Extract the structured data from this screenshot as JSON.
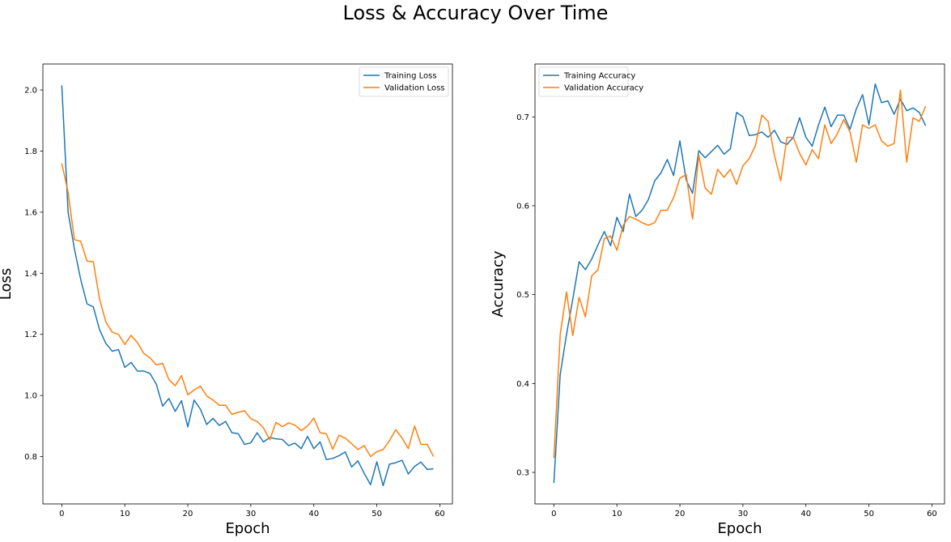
{
  "figure": {
    "title": "Loss & Accuracy Over Time"
  },
  "colors": {
    "series1": "#1f77b4",
    "series2": "#ff7f0e"
  },
  "chart_data": [
    {
      "type": "line",
      "xlabel": "Epoch",
      "ylabel": "Loss",
      "xlim": [
        -3,
        62
      ],
      "ylim": [
        0.645,
        2.085
      ],
      "xticks": [
        0,
        10,
        20,
        30,
        40,
        50,
        60
      ],
      "yticks": [
        0.8,
        1.0,
        1.2,
        1.4,
        1.6,
        1.8,
        2.0
      ],
      "legend_position": "top-right",
      "x": [
        0,
        1,
        2,
        3,
        4,
        5,
        6,
        7,
        8,
        9,
        10,
        11,
        12,
        13,
        14,
        15,
        16,
        17,
        18,
        19,
        20,
        21,
        22,
        23,
        24,
        25,
        26,
        27,
        28,
        29,
        30,
        31,
        32,
        33,
        34,
        35,
        36,
        37,
        38,
        39,
        40,
        41,
        42,
        43,
        44,
        45,
        46,
        47,
        48,
        49,
        50,
        51,
        52,
        53,
        54,
        55,
        56,
        57,
        58,
        59
      ],
      "series": [
        {
          "name": "Training Loss",
          "color": "#1f77b4",
          "values": [
            2.015,
            1.6,
            1.48,
            1.38,
            1.3,
            1.29,
            1.215,
            1.17,
            1.145,
            1.15,
            1.092,
            1.108,
            1.08,
            1.08,
            1.072,
            1.037,
            0.965,
            0.99,
            0.948,
            0.983,
            0.897,
            0.985,
            0.955,
            0.905,
            0.925,
            0.902,
            0.915,
            0.878,
            0.875,
            0.84,
            0.845,
            0.878,
            0.848,
            0.862,
            0.858,
            0.856,
            0.836,
            0.844,
            0.826,
            0.866,
            0.826,
            0.848,
            0.79,
            0.794,
            0.803,
            0.815,
            0.766,
            0.786,
            0.745,
            0.708,
            0.783,
            0.705,
            0.775,
            0.78,
            0.788,
            0.743,
            0.768,
            0.782,
            0.758,
            0.76
          ]
        },
        {
          "name": "Validation Loss",
          "color": "#ff7f0e",
          "values": [
            1.76,
            1.665,
            1.51,
            1.505,
            1.44,
            1.438,
            1.315,
            1.24,
            1.207,
            1.2,
            1.167,
            1.197,
            1.173,
            1.138,
            1.123,
            1.1,
            1.105,
            1.052,
            1.032,
            1.065,
            1.002,
            1.018,
            1.03,
            0.998,
            0.985,
            0.968,
            0.968,
            0.938,
            0.945,
            0.95,
            0.924,
            0.915,
            0.894,
            0.855,
            0.912,
            0.898,
            0.91,
            0.903,
            0.885,
            0.9,
            0.926,
            0.878,
            0.874,
            0.824,
            0.87,
            0.86,
            0.842,
            0.823,
            0.836,
            0.8,
            0.816,
            0.823,
            0.852,
            0.888,
            0.861,
            0.826,
            0.9,
            0.84,
            0.84,
            0.8
          ]
        }
      ]
    },
    {
      "type": "line",
      "xlabel": "Epoch",
      "ylabel": "Accuracy",
      "xlim": [
        -3,
        62
      ],
      "ylim": [
        0.2645,
        0.7595
      ],
      "xticks": [
        0,
        10,
        20,
        30,
        40,
        50,
        60
      ],
      "yticks": [
        0.3,
        0.4,
        0.5,
        0.6,
        0.7
      ],
      "legend_position": "top-left",
      "x": [
        0,
        1,
        2,
        3,
        4,
        5,
        6,
        7,
        8,
        9,
        10,
        11,
        12,
        13,
        14,
        15,
        16,
        17,
        18,
        19,
        20,
        21,
        22,
        23,
        24,
        25,
        26,
        27,
        28,
        29,
        30,
        31,
        32,
        33,
        34,
        35,
        36,
        37,
        38,
        39,
        40,
        41,
        42,
        43,
        44,
        45,
        46,
        47,
        48,
        49,
        50,
        51,
        52,
        53,
        54,
        55,
        56,
        57,
        58,
        59
      ],
      "series": [
        {
          "name": "Training Accuracy",
          "color": "#1f77b4",
          "values": [
            0.288,
            0.41,
            0.455,
            0.495,
            0.537,
            0.528,
            0.54,
            0.556,
            0.571,
            0.555,
            0.587,
            0.571,
            0.613,
            0.588,
            0.595,
            0.607,
            0.628,
            0.637,
            0.652,
            0.634,
            0.673,
            0.629,
            0.614,
            0.662,
            0.654,
            0.661,
            0.668,
            0.658,
            0.664,
            0.705,
            0.7,
            0.679,
            0.68,
            0.683,
            0.677,
            0.685,
            0.672,
            0.669,
            0.677,
            0.699,
            0.677,
            0.667,
            0.691,
            0.711,
            0.689,
            0.702,
            0.702,
            0.686,
            0.709,
            0.725,
            0.691,
            0.737,
            0.716,
            0.718,
            0.703,
            0.72,
            0.707,
            0.71,
            0.705,
            0.69
          ]
        },
        {
          "name": "Validation Accuracy",
          "color": "#ff7f0e",
          "values": [
            0.316,
            0.455,
            0.503,
            0.454,
            0.497,
            0.475,
            0.521,
            0.528,
            0.563,
            0.566,
            0.55,
            0.578,
            0.588,
            0.585,
            0.581,
            0.578,
            0.581,
            0.595,
            0.595,
            0.609,
            0.631,
            0.635,
            0.585,
            0.657,
            0.62,
            0.613,
            0.641,
            0.632,
            0.641,
            0.624,
            0.645,
            0.653,
            0.668,
            0.702,
            0.695,
            0.657,
            0.628,
            0.677,
            0.677,
            0.659,
            0.646,
            0.663,
            0.653,
            0.691,
            0.67,
            0.681,
            0.697,
            0.683,
            0.649,
            0.691,
            0.687,
            0.691,
            0.673,
            0.667,
            0.67,
            0.73,
            0.649,
            0.699,
            0.695,
            0.712
          ]
        }
      ]
    }
  ]
}
